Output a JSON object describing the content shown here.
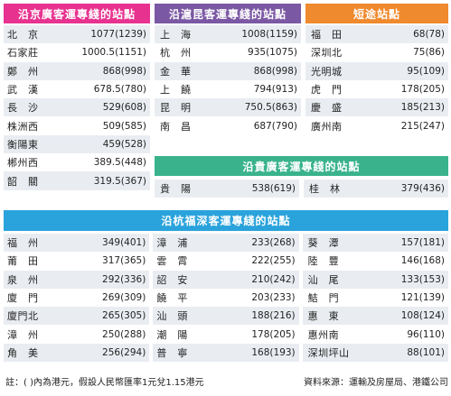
{
  "colors": {
    "magenta": "#e7328f",
    "purple": "#7b58a4",
    "orange": "#ef8a2e",
    "green": "#3ab38c",
    "blue": "#2aa3dc",
    "row_shade": "#e9edf2"
  },
  "top_left": {
    "title": "沿京廣客運專綫的站點",
    "rows": [
      {
        "city": "北　京",
        "value": "1077(1239)"
      },
      {
        "city": "石家莊",
        "value": "1000.5(1151)"
      },
      {
        "city": "鄭　州",
        "value": "868(998)"
      },
      {
        "city": "武　漢",
        "value": "678.5(780)"
      },
      {
        "city": "長　沙",
        "value": "529(608)"
      },
      {
        "city": "株洲西",
        "value": "509(585)"
      },
      {
        "city": "衡陽東",
        "value": "459(528)"
      },
      {
        "city": "郴州西",
        "value": "389.5(448)"
      },
      {
        "city": "韶　關",
        "value": "319.5(367)"
      }
    ]
  },
  "top_middle": {
    "title": "沿滬昆客運專綫的站點",
    "rows": [
      {
        "city": "上　海",
        "value": "1008(1159)"
      },
      {
        "city": "杭　州",
        "value": "935(1075)"
      },
      {
        "city": "金　華",
        "value": "868(998)"
      },
      {
        "city": "上　饒",
        "value": "794(913)"
      },
      {
        "city": "昆　明",
        "value": "750.5(863)"
      },
      {
        "city": "南　昌",
        "value": "687(790)"
      }
    ]
  },
  "top_right": {
    "title": "短途站點",
    "rows": [
      {
        "city": "福　田",
        "value": "68(78)"
      },
      {
        "city": "深圳北",
        "value": "75(86)"
      },
      {
        "city": "光明城",
        "value": "95(109)"
      },
      {
        "city": "虎　門",
        "value": "178(205)"
      },
      {
        "city": "慶　盛",
        "value": "185(213)"
      },
      {
        "city": "廣州南",
        "value": "215(247)"
      }
    ]
  },
  "gui_guang": {
    "title": "沿貴廣客運專綫的站點",
    "rows": [
      {
        "city": "貴　陽",
        "value": "538(619)"
      },
      {
        "city": "桂　林",
        "value": "379(436)"
      }
    ]
  },
  "hang_fu_shen": {
    "title": "沿杭福深客運專綫的站點",
    "col1": [
      {
        "city": "福　州",
        "value": "349(401)"
      },
      {
        "city": "莆　田",
        "value": "317(365)"
      },
      {
        "city": "泉　州",
        "value": "292(336)"
      },
      {
        "city": "廈　門",
        "value": "269(309)"
      },
      {
        "city": "廈門北",
        "value": "265(305)"
      },
      {
        "city": "漳　州",
        "value": "250(288)"
      },
      {
        "city": "角　美",
        "value": "256(294)"
      }
    ],
    "col2": [
      {
        "city": "漳　浦",
        "value": "233(268)"
      },
      {
        "city": "雲　霄",
        "value": "222(255)"
      },
      {
        "city": "詔　安",
        "value": "210(242)"
      },
      {
        "city": "饒　平",
        "value": "203(233)"
      },
      {
        "city": "汕　頭",
        "value": "188(216)"
      },
      {
        "city": "潮　陽",
        "value": "178(205)"
      },
      {
        "city": "普　寧",
        "value": "168(193)"
      }
    ],
    "col3": [
      {
        "city": "葵　潭",
        "value": "157(181)"
      },
      {
        "city": "陸　豐",
        "value": "146(168)"
      },
      {
        "city": "汕　尾",
        "value": "133(153)"
      },
      {
        "city": "鮚　門",
        "value": "121(139)"
      },
      {
        "city": "惠　東",
        "value": "108(124)"
      },
      {
        "city": "惠州南",
        "value": "96(110)"
      },
      {
        "city": "深圳坪山",
        "value": "88(101)"
      }
    ]
  },
  "footer": {
    "note": "註：( )內為港元，假設人民幣匯率1元兌1.15港元",
    "source": "資料來源：運輸及房屋局、港鐵公司"
  }
}
